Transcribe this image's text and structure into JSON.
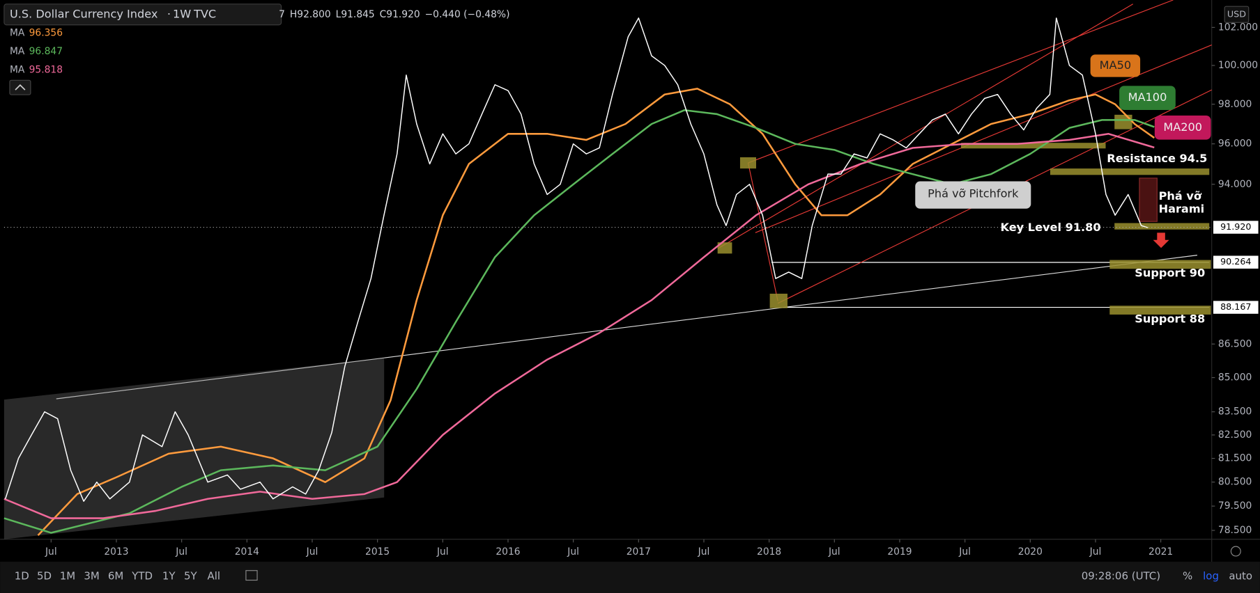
{
  "chart_data": {
    "type": "line",
    "title": "U.S. Dollar Currency Index",
    "interval": "1W",
    "source": "TVC",
    "ohlc": [
      "7",
      "H92.800",
      "L91.845",
      "C91.920",
      "−0.440 (−0.48%)"
    ],
    "currency": "USD",
    "log": true,
    "xlim": [
      2012.14,
      2021.39
    ],
    "ylim": [
      78.14,
      103.25
    ],
    "xticks": [
      {
        "value": 2012.5,
        "label": "Jul"
      },
      2013,
      {
        "value": 2013.5,
        "label": "Jul"
      },
      2014,
      {
        "value": 2014.5,
        "label": "Jul"
      },
      2015,
      {
        "value": 2015.5,
        "label": "Jul"
      },
      2016,
      {
        "value": 2016.5,
        "label": "Jul"
      },
      2017,
      {
        "value": 2017.5,
        "label": "Jul"
      },
      2018,
      {
        "value": 2018.5,
        "label": "Jul"
      },
      2019,
      {
        "value": 2019.5,
        "label": "Jul"
      },
      2020,
      {
        "value": 2020.5,
        "label": "Jul"
      },
      2021
    ],
    "yticks": [
      {
        "value": 102,
        "label": "102.000"
      },
      {
        "value": 100,
        "label": "100.000"
      },
      {
        "value": 98,
        "label": "98.000"
      },
      {
        "value": 96,
        "label": "96.000"
      },
      {
        "value": 94,
        "label": "94.000"
      },
      {
        "value": 86.5,
        "label": "86.500"
      },
      {
        "value": 85,
        "label": "85.000"
      },
      {
        "value": 83.5,
        "label": "83.500"
      },
      {
        "value": 82.5,
        "label": "82.500"
      },
      {
        "value": 81.5,
        "label": "81.500"
      },
      {
        "value": 80.5,
        "label": "80.500"
      },
      {
        "value": 79.5,
        "label": "79.500"
      },
      {
        "value": 78.5,
        "label": "78.500"
      }
    ],
    "last_price": {
      "value": 91.92,
      "label": "91.920"
    },
    "level_tags": [
      90.264,
      88.167
    ],
    "price": {
      "color": "#ffffff",
      "x": [
        2012.15,
        2012.25,
        2012.35,
        2012.45,
        2012.55,
        2012.65,
        2012.75,
        2012.85,
        2012.95,
        2013.1,
        2013.2,
        2013.35,
        2013.45,
        2013.55,
        2013.7,
        2013.85,
        2013.95,
        2014.1,
        2014.2,
        2014.35,
        2014.45,
        2014.55,
        2014.65,
        2014.75,
        2014.85,
        2014.95,
        2015.05,
        2015.15,
        2015.22,
        2015.3,
        2015.4,
        2015.5,
        2015.6,
        2015.7,
        2015.8,
        2015.9,
        2016.0,
        2016.1,
        2016.2,
        2016.3,
        2016.4,
        2016.5,
        2016.6,
        2016.7,
        2016.8,
        2016.92,
        2017.0,
        2017.1,
        2017.2,
        2017.3,
        2017.4,
        2017.5,
        2017.6,
        2017.67,
        2017.75,
        2017.85,
        2017.95,
        2018.05,
        2018.15,
        2018.25,
        2018.33,
        2018.45,
        2018.55,
        2018.65,
        2018.75,
        2018.85,
        2018.95,
        2019.05,
        2019.15,
        2019.25,
        2019.35,
        2019.45,
        2019.55,
        2019.65,
        2019.75,
        2019.85,
        2019.95,
        2020.05,
        2020.15,
        2020.2,
        2020.3,
        2020.4,
        2020.5,
        2020.58,
        2020.65,
        2020.75,
        2020.85,
        2020.9
      ],
      "values": [
        79.8,
        81.5,
        82.5,
        83.5,
        83.2,
        81.0,
        79.7,
        80.5,
        79.8,
        80.5,
        82.5,
        82.0,
        83.5,
        82.5,
        80.5,
        80.8,
        80.2,
        80.5,
        79.8,
        80.3,
        80.0,
        81.0,
        82.6,
        85.5,
        87.5,
        89.5,
        92.5,
        95.5,
        99.5,
        97.0,
        95.0,
        96.5,
        95.5,
        96.0,
        97.5,
        99.0,
        98.7,
        97.5,
        95.0,
        93.5,
        94.0,
        96.0,
        95.5,
        95.8,
        98.5,
        101.5,
        102.5,
        100.5,
        100.0,
        99.0,
        97.0,
        95.5,
        93.0,
        92.0,
        93.5,
        94.0,
        92.5,
        89.5,
        89.8,
        89.5,
        92.0,
        94.5,
        94.5,
        95.5,
        95.3,
        96.5,
        96.2,
        95.8,
        96.5,
        97.2,
        97.5,
        96.5,
        97.5,
        98.3,
        98.5,
        97.5,
        96.7,
        97.8,
        98.5,
        102.5,
        100.0,
        99.5,
        96.5,
        93.5,
        92.5,
        93.5,
        92.0,
        91.9
      ]
    },
    "series": [
      {
        "name": "MA",
        "legend_value": "96.356",
        "color": "#ff9b3d",
        "x": [
          2012.4,
          2012.7,
          2013.0,
          2013.4,
          2013.8,
          2014.2,
          2014.6,
          2014.9,
          2015.1,
          2015.3,
          2015.5,
          2015.7,
          2016.0,
          2016.3,
          2016.6,
          2016.9,
          2017.2,
          2017.45,
          2017.7,
          2017.95,
          2018.2,
          2018.4,
          2018.6,
          2018.85,
          2019.1,
          2019.4,
          2019.7,
          2020.0,
          2020.3,
          2020.5,
          2020.65,
          2020.8,
          2020.95
        ],
        "values": [
          78.3,
          80.0,
          80.7,
          81.7,
          82.0,
          81.5,
          80.5,
          81.5,
          84.0,
          88.5,
          92.5,
          95.0,
          96.5,
          96.5,
          96.2,
          97.0,
          98.5,
          98.8,
          98.0,
          96.5,
          94.0,
          92.5,
          92.5,
          93.5,
          95.0,
          96.0,
          97.0,
          97.5,
          98.2,
          98.5,
          98.0,
          97.0,
          96.3
        ]
      },
      {
        "name": "MA",
        "legend_value": "96.847",
        "color": "#5cb85c",
        "x": [
          2012.14,
          2012.5,
          2012.8,
          2013.1,
          2013.5,
          2013.8,
          2014.2,
          2014.6,
          2015.0,
          2015.3,
          2015.6,
          2015.9,
          2016.2,
          2016.5,
          2016.8,
          2017.1,
          2017.35,
          2017.6,
          2017.9,
          2018.2,
          2018.5,
          2018.8,
          2019.1,
          2019.4,
          2019.7,
          2020.0,
          2020.3,
          2020.55,
          2020.8,
          2020.95
        ],
        "values": [
          79.0,
          78.4,
          78.8,
          79.2,
          80.3,
          81.0,
          81.2,
          81.0,
          82.0,
          84.5,
          87.5,
          90.5,
          92.5,
          94.0,
          95.5,
          97.0,
          97.7,
          97.5,
          96.8,
          96.0,
          95.7,
          95.0,
          94.5,
          94.0,
          94.5,
          95.5,
          96.8,
          97.2,
          97.2,
          96.85
        ]
      },
      {
        "name": "MA",
        "legend_value": "95.818",
        "color": "#f0699a",
        "x": [
          2012.14,
          2012.5,
          2012.9,
          2013.3,
          2013.7,
          2014.1,
          2014.5,
          2014.9,
          2015.15,
          2015.5,
          2015.9,
          2016.3,
          2016.7,
          2017.1,
          2017.5,
          2017.9,
          2018.3,
          2018.7,
          2019.1,
          2019.5,
          2019.9,
          2020.3,
          2020.6,
          2020.95
        ],
        "values": [
          79.8,
          79.0,
          79.0,
          79.3,
          79.8,
          80.1,
          79.8,
          80.0,
          80.5,
          82.5,
          84.3,
          85.8,
          87.0,
          88.5,
          90.5,
          92.5,
          94.0,
          95.0,
          95.8,
          96.0,
          96.0,
          96.2,
          96.5,
          95.82
        ]
      }
    ],
    "annotations": [
      "MA50",
      "MA100",
      "MA200",
      "Resistance 94.5",
      "Phá vỡ Pitchfork",
      "Phá vỡ",
      "Harami",
      "Key Level 91.80",
      "Support 90",
      "Support 88"
    ]
  },
  "toolbar": {
    "ranges": [
      "1D",
      "5D",
      "1M",
      "3M",
      "6M",
      "YTD",
      "1Y",
      "5Y",
      "All"
    ],
    "time": "09:28:06 (UTC)",
    "options": [
      "%",
      "log",
      "auto"
    ]
  }
}
